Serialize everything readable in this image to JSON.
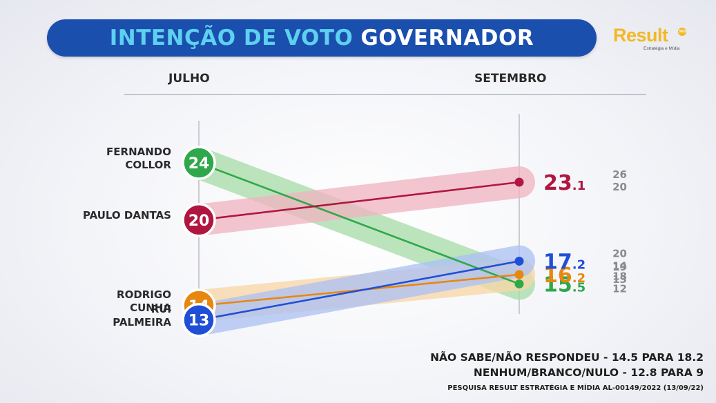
{
  "header": {
    "title_part1": "INTENÇÃO DE VOTO",
    "title_part2": "GOVERNADOR"
  },
  "logo": {
    "word": "Result",
    "badge": "360",
    "subtitle": "Estratégia e Mídia"
  },
  "chart_data": {
    "type": "slope",
    "x": [
      "JULHO",
      "SETEMBRO"
    ],
    "series": [
      {
        "name": "FERNANDO COLLOR",
        "name_lines": [
          "FERNANDO",
          "COLLOR"
        ],
        "values": [
          24,
          15.5
        ],
        "end_int": "15",
        "end_dec": ".5",
        "range": [
          "18",
          "12"
        ],
        "color": "#2ea84a",
        "band": "#a9dca9"
      },
      {
        "name": "PAULO DANTAS",
        "name_lines": [
          "PAULO DANTAS"
        ],
        "values": [
          20,
          23.1
        ],
        "end_int": "23",
        "end_dec": ".1",
        "range": [
          "26",
          "20"
        ],
        "color": "#b0163f",
        "band": "#f0b5c2"
      },
      {
        "name": "RODRIGO CUNHA",
        "name_lines": [
          "RODRIGO",
          "CUNHA"
        ],
        "values": [
          14,
          16.2
        ],
        "end_int": "16",
        "end_dec": ".2",
        "range": [
          "19",
          "13"
        ],
        "color": "#e8870f",
        "band": "#f7d6a6"
      },
      {
        "name": "RUI PALMEIRA",
        "name_lines": [
          "RUI",
          "PALMEIRA"
        ],
        "values": [
          13,
          17.2
        ],
        "end_int": "17",
        "end_dec": ".2",
        "range": [
          "20",
          "14"
        ],
        "color": "#1f4fd6",
        "band": "#adc2f2"
      }
    ]
  },
  "footer": {
    "line1": "NÃO SABE/NÃO RESPONDEU -  14.5 PARA 18.2",
    "line2": "NENHUM/BRANCO/NULO - 12.8 PARA 9",
    "source": "PESQUISA RESULT ESTRATÉGIA E MÍDIA AL-00149/2022 (13/09/22)"
  },
  "colors": {
    "title_bg": "#1a4fae",
    "title_accent": "#5ed0f0",
    "range_text": "#8a8a8a"
  }
}
